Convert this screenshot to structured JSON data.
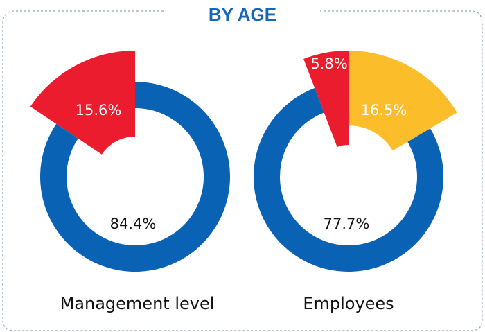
{
  "title": "BY AGE",
  "colors": {
    "frame": "#8fa3b8",
    "title": "#1565b9",
    "blue": "#0a62b5",
    "red": "#ea1c2d",
    "yellow": "#fbbd29"
  },
  "chart_data": [
    {
      "type": "pie",
      "xlabel": "Management level",
      "slices": [
        {
          "value": 84.4,
          "label": "84.4%",
          "color": "#0a62b5"
        },
        {
          "value": 15.6,
          "label": "15.6%",
          "color": "#ea1c2d"
        }
      ]
    },
    {
      "type": "pie",
      "xlabel": "Employees",
      "slices": [
        {
          "value": 77.7,
          "label": "77.7%",
          "color": "#0a62b5"
        },
        {
          "value": 5.8,
          "label": "5.8%",
          "color": "#ea1c2d"
        },
        {
          "value": 16.5,
          "label": "16.5%",
          "color": "#fbbd29"
        }
      ]
    }
  ]
}
